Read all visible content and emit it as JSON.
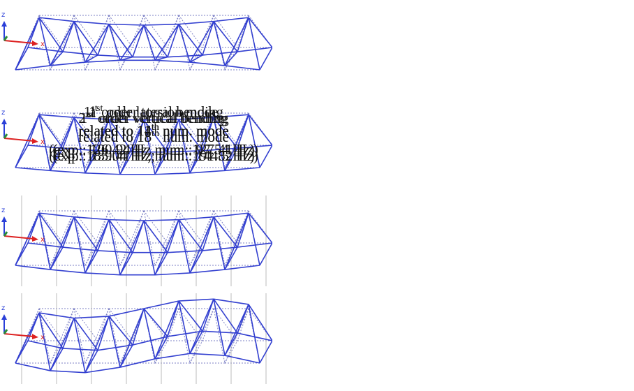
{
  "panels": [
    {
      "axis_labels": {
        "z": "z",
        "x": "x"
      },
      "caption": {
        "order_number": "1",
        "order_suffix": "st",
        "mode_label": "order torsion mode",
        "related_prefix": "related to",
        "num_mode_number": "11",
        "num_mode_suffix": "th",
        "related_suffix": "num. mode",
        "frequencies": "(exp.: 100.94 Hz, num.: 97.54 Hz)"
      }
    },
    {
      "axis_labels": {
        "z": "z",
        "x": "x"
      },
      "caption": {
        "order_number": "1",
        "order_suffix": "st",
        "mode_label": "order lateral bending",
        "related_prefix": "related to",
        "num_mode_number": "14",
        "num_mode_suffix": "th",
        "related_suffix": "num. mode",
        "frequencies": "(exp.: 126.42 Hz, num.: 127.41 Hz)"
      }
    },
    {
      "axis_labels": {
        "z": "z",
        "x": "x"
      },
      "caption": {
        "order_number": "1",
        "order_suffix": "st",
        "mode_label": "order vertical bending",
        "related_prefix": "related to",
        "num_mode_number": "15",
        "num_mode_suffix": "th",
        "related_suffix": "num. mode",
        "frequencies": "(exp.: 139.41 Hz, num.: 144.5 Hz)"
      }
    },
    {
      "axis_labels": {
        "z": "z",
        "x": "x"
      },
      "caption": {
        "order_number": "2",
        "order_suffix": "nd",
        "mode_label": "order vertical bending",
        "related_prefix": "related to",
        "num_mode_number": "18",
        "num_mode_suffix": "th",
        "related_suffix": "num. mode",
        "frequencies": "(exp.: 185.04 Hz, num.: 191.82 Hz)"
      }
    }
  ]
}
